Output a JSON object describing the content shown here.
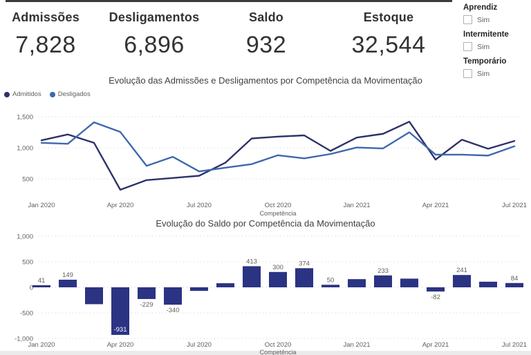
{
  "kpi_cards": [
    {
      "label": "Admissões",
      "value": "7,828"
    },
    {
      "label": "Desligamentos",
      "value": "6,896"
    },
    {
      "label": "Saldo",
      "value": "932"
    },
    {
      "label": "Estoque",
      "value": "32,544"
    }
  ],
  "slicers": [
    {
      "title": "Aprendiz",
      "option": "Sim",
      "checked": false
    },
    {
      "title": "Intermitente",
      "option": "Sim",
      "checked": false
    },
    {
      "title": "Temporário",
      "option": "Sim",
      "checked": false
    }
  ],
  "chart_data": [
    {
      "type": "line",
      "title": "Evolução das Admissões e Desligamentos por Competência da Movimentação",
      "xlabel": "Competência",
      "categories": [
        "Jan 2020",
        "Feb 2020",
        "Mar 2020",
        "Apr 2020",
        "May 2020",
        "Jun 2020",
        "Jul 2020",
        "Aug 2020",
        "Sep 2020",
        "Oct 2020",
        "Nov 2020",
        "Dec 2020",
        "Jan 2021",
        "Feb 2021",
        "Mar 2021",
        "Apr 2021",
        "May 2021",
        "Jun 2021",
        "Jul 2021"
      ],
      "x_tick_labels": [
        "Jan 2020",
        "Apr 2020",
        "Jul 2020",
        "Oct 2020",
        "Jan 2021",
        "Apr 2021",
        "Jul 2021"
      ],
      "y_ticks": [
        500,
        1000,
        1500
      ],
      "y_tick_labels": [
        "500",
        "1,000",
        "1,500"
      ],
      "ylim": [
        150,
        1600
      ],
      "grid": "dotted",
      "legend_position": "top-left",
      "series": [
        {
          "name": "Admitidos",
          "color": "#2e3169",
          "values": [
            1120,
            1215,
            1080,
            325,
            480,
            515,
            550,
            760,
            1150,
            1180,
            1200,
            950,
            1165,
            1225,
            1420,
            810,
            1130,
            985,
            1110
          ]
        },
        {
          "name": "Desligados",
          "color": "#3e68ad",
          "values": [
            1080,
            1065,
            1410,
            1255,
            710,
            855,
            620,
            680,
            737,
            880,
            830,
            900,
            1005,
            990,
            1250,
            890,
            890,
            875,
            1025
          ]
        }
      ]
    },
    {
      "type": "bar",
      "title": "Evolução do Saldo por Competência da Movimentação",
      "xlabel": "Competência",
      "categories": [
        "Jan 2020",
        "Feb 2020",
        "Mar 2020",
        "Apr 2020",
        "May 2020",
        "Jun 2020",
        "Jul 2020",
        "Aug 2020",
        "Sep 2020",
        "Oct 2020",
        "Nov 2020",
        "Dec 2020",
        "Jan 2021",
        "Feb 2021",
        "Mar 2021",
        "Apr 2021",
        "May 2021",
        "Jun 2021",
        "Jul 2021"
      ],
      "x_tick_labels": [
        "Jan 2020",
        "Apr 2020",
        "Jul 2020",
        "Oct 2020",
        "Jan 2021",
        "Apr 2021",
        "Jul 2021"
      ],
      "y_ticks": [
        -1000,
        -500,
        0,
        500,
        1000
      ],
      "y_tick_labels": [
        "-1,000",
        "-500",
        "0",
        "500",
        "1,000"
      ],
      "ylim": [
        -1000,
        1000
      ],
      "grid": "dotted",
      "bar_color": "#2b3383",
      "values": [
        41,
        149,
        -330,
        -931,
        -229,
        -340,
        -70,
        80,
        413,
        300,
        374,
        50,
        160,
        233,
        170,
        -82,
        241,
        110,
        84
      ],
      "data_labels": [
        "41",
        "149",
        null,
        "-931",
        "-229",
        "-340",
        null,
        null,
        "413",
        "300",
        "374",
        "50",
        null,
        "233",
        null,
        "-82",
        "241",
        null,
        "84"
      ]
    }
  ],
  "theme": {
    "axis_text": "#605e5c",
    "grid_color": "#d2d2d2",
    "top_border": "#3b3b3b",
    "inside_label_color": "#ffffff"
  }
}
